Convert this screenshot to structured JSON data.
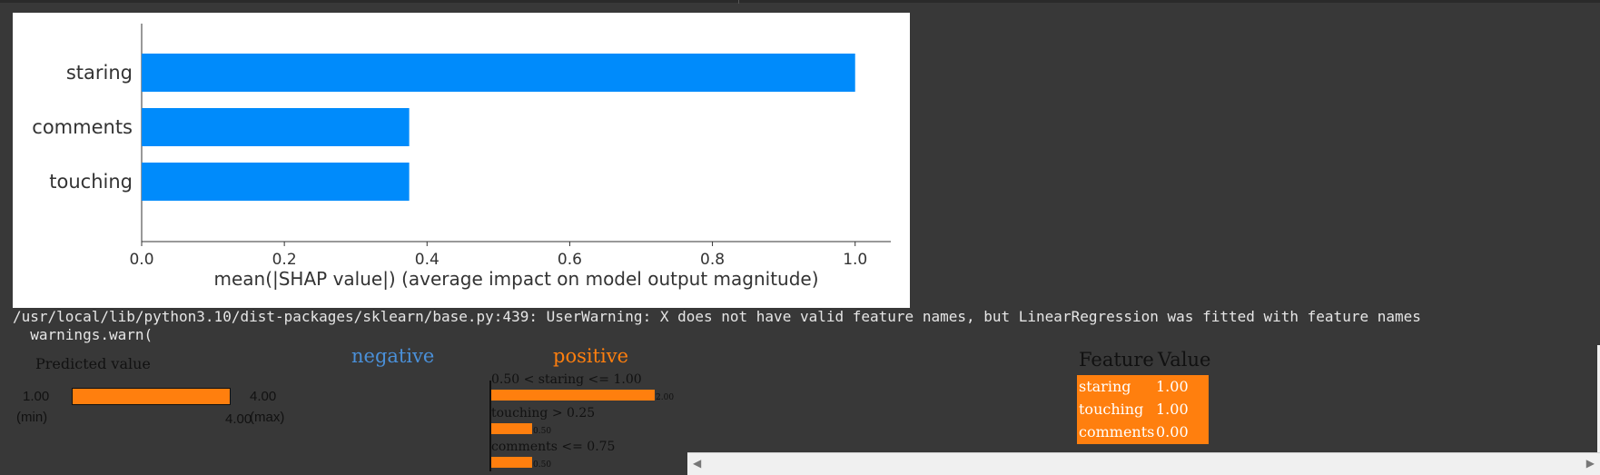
{
  "chart_data": {
    "type": "bar",
    "orientation": "horizontal",
    "categories": [
      "staring",
      "comments",
      "touching"
    ],
    "values": [
      1.0,
      0.375,
      0.375
    ],
    "xlim": [
      0.0,
      1.05
    ],
    "xticks": [
      "0.0",
      "0.2",
      "0.4",
      "0.6",
      "0.8",
      "1.0"
    ],
    "xlabel": "mean(|SHAP value|) (average impact on model output magnitude)",
    "bar_color": "#008bfb"
  },
  "console": {
    "line1": "/usr/local/lib/python3.10/dist-packages/sklearn/base.py:439: UserWarning: X does not have valid feature names, but LinearRegression was fitted with feature names",
    "line2": "  warnings.warn("
  },
  "lime": {
    "prediction": {
      "title": "Predicted value",
      "min": "1.00",
      "min_label": "(min)",
      "max": "4.00",
      "max_label": "(max)",
      "value": "4.00",
      "fraction": 1.0,
      "color": "#ff7f0e"
    },
    "negative_label": "negative",
    "positive_label": "positive",
    "negative_color": "#4a90d9",
    "positive_color": "#ff7f0e",
    "contributions": [
      {
        "label": "0.50 < staring <= 1.00",
        "value": "2.00",
        "weight": 2.0
      },
      {
        "label": "touching > 0.25",
        "value": "0.50",
        "weight": 0.5
      },
      {
        "label": "comments <= 0.75",
        "value": "0.50",
        "weight": 0.5
      }
    ],
    "table": {
      "header_feature": "Feature",
      "header_value": "Value",
      "rows": [
        {
          "feature": "staring",
          "value": "1.00"
        },
        {
          "feature": "touching",
          "value": "1.00"
        },
        {
          "feature": "comments",
          "value": "0.00"
        }
      ]
    }
  },
  "scrollbar": {
    "left_arrow": "◀",
    "right_arrow": "▶"
  }
}
